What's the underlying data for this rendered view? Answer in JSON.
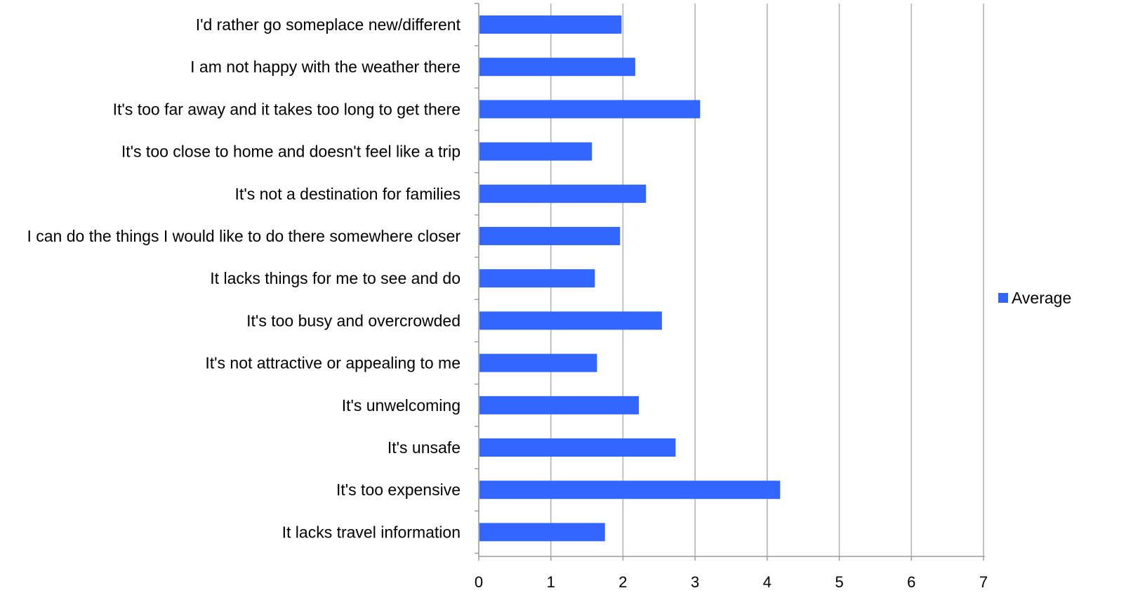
{
  "chart_data": {
    "type": "bar",
    "orientation": "horizontal",
    "categories": [
      "I'd rather go someplace new/different",
      "I am not happy with the weather there",
      "It's too far away and it takes too long to get there",
      "It's too close to home and doesn't feel like a trip",
      "It's not a destination for families",
      "I can do the things I would like to do there somewhere closer",
      "It lacks things for me to see and do",
      "It's too busy and overcrowded",
      "It's not attractive or appealing to me",
      "It's unwelcoming",
      "It's unsafe",
      "It's too expensive",
      "It lacks travel information"
    ],
    "series": [
      {
        "name": "Average",
        "color": "#3366ff",
        "values": [
          1.98,
          2.17,
          3.07,
          1.57,
          2.32,
          1.96,
          1.61,
          2.54,
          1.64,
          2.22,
          2.73,
          4.18,
          1.75
        ]
      }
    ],
    "xlim": [
      0,
      7
    ],
    "xticks": [
      "0",
      "1",
      "2",
      "3",
      "4",
      "5",
      "6",
      "7"
    ],
    "grid": "vertical",
    "legend_position": "right",
    "title": "",
    "xlabel": "",
    "ylabel": ""
  }
}
